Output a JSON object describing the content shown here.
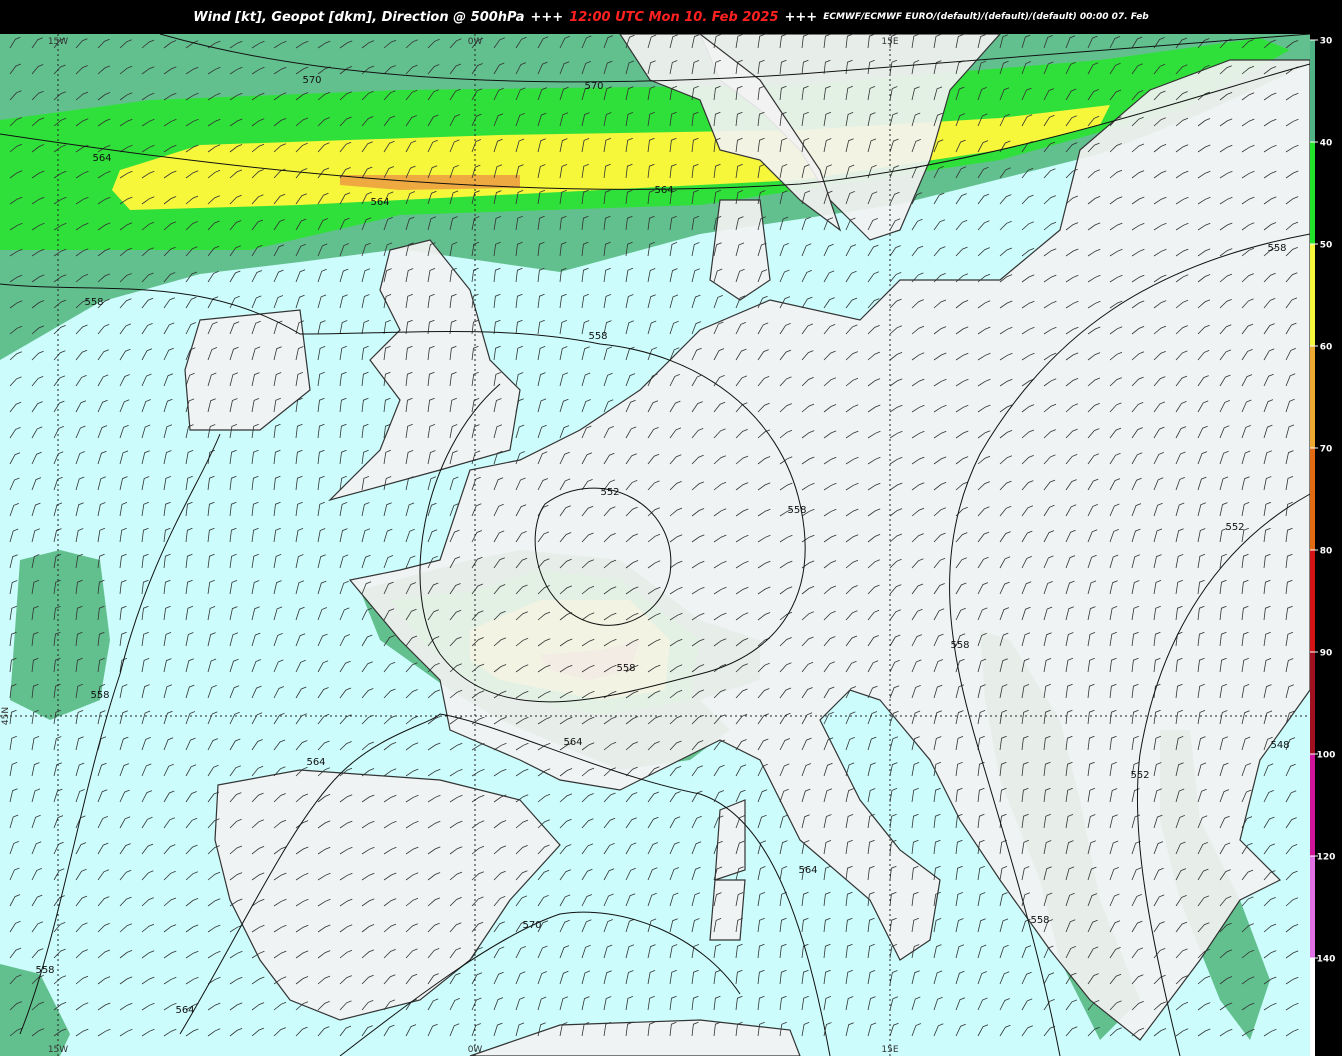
{
  "header": {
    "title": "Wind [kt], Geopot [dkm], Direction @ 500hPa",
    "separator": "+++",
    "valid_time": "12:00 UTC Mon 10. Feb 2025",
    "model": "ECMWF/ECMWF EURO/(default)/(default)/(default) 00:00 07. Feb"
  },
  "graticule": {
    "top": [
      "15W",
      "0W",
      "15E"
    ],
    "bottom": [
      "15W",
      "0W",
      "15E"
    ],
    "left": [
      "45N"
    ]
  },
  "contours": [
    {
      "label": "570"
    },
    {
      "label": "570"
    },
    {
      "label": "564"
    },
    {
      "label": "564"
    },
    {
      "label": "564"
    },
    {
      "label": "558"
    },
    {
      "label": "558"
    },
    {
      "label": "558"
    },
    {
      "label": "552"
    },
    {
      "label": "558"
    },
    {
      "label": "558"
    },
    {
      "label": "552"
    },
    {
      "label": "564"
    },
    {
      "label": "564"
    },
    {
      "label": "570"
    },
    {
      "label": "558"
    },
    {
      "label": "564"
    },
    {
      "label": "558"
    },
    {
      "label": "564"
    },
    {
      "label": "558"
    },
    {
      "label": "552"
    },
    {
      "label": "558"
    },
    {
      "label": "548"
    }
  ],
  "colorbar": {
    "ticks": [
      {
        "label": "30",
        "color": "#4fb386"
      },
      {
        "label": "40",
        "color": "#22e22a"
      },
      {
        "label": "50",
        "color": "#f6f63a"
      },
      {
        "label": "60",
        "color": "#eeaa30"
      },
      {
        "label": "70",
        "color": "#e26a12"
      },
      {
        "label": "80",
        "color": "#d41414"
      },
      {
        "label": "90",
        "color": "#a0101e"
      },
      {
        "label": "100",
        "color": "#d0149a"
      },
      {
        "label": "120",
        "color": "#e070e4"
      },
      {
        "label": "140",
        "color": "#ffffff"
      }
    ]
  }
}
